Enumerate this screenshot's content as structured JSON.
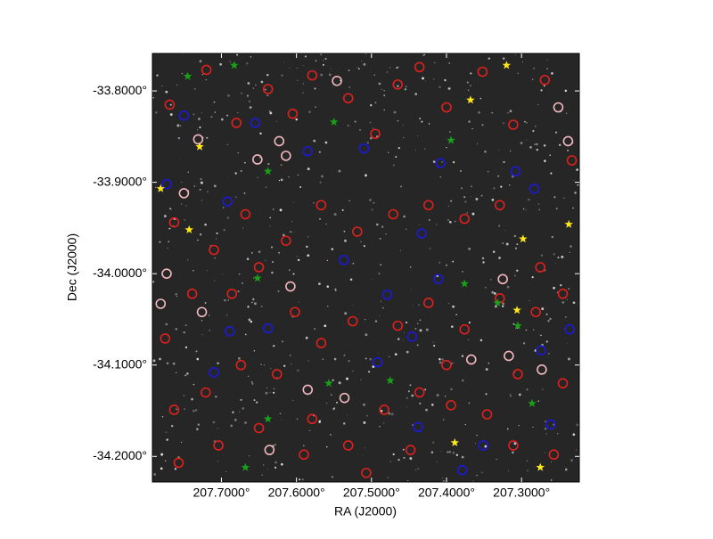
{
  "chart_data": {
    "type": "scatter",
    "xlabel": "RA (J2000)",
    "ylabel": "Dec (J2000)",
    "xlim": [
      207.792,
      207.223
    ],
    "ylim": [
      -34.228,
      -33.759
    ],
    "xticks": [
      {
        "value": 207.7,
        "label": "207.7000°"
      },
      {
        "value": 207.6,
        "label": "207.6000°"
      },
      {
        "value": 207.5,
        "label": "207.5000°"
      },
      {
        "value": 207.4,
        "label": "207.4000°"
      },
      {
        "value": 207.3,
        "label": "207.3000°"
      }
    ],
    "yticks": [
      {
        "value": -33.8,
        "label": "-33.8000°"
      },
      {
        "value": -33.9,
        "label": "-33.9000°"
      },
      {
        "value": -34.0,
        "label": "-34.0000°"
      },
      {
        "value": -34.1,
        "label": "-34.1000°"
      },
      {
        "value": -34.2,
        "label": "-34.2000°"
      }
    ],
    "background": "#262626",
    "series": [
      {
        "color": "#e0201c",
        "marker": "circle",
        "x": [
          207.769,
          207.72,
          207.68,
          207.638,
          207.605,
          207.579,
          207.531,
          207.495,
          207.465,
          207.436,
          207.4,
          207.352,
          207.311,
          207.269,
          207.233,
          207.763,
          207.71,
          207.668,
          207.614,
          207.567,
          207.519,
          207.471,
          207.424,
          207.376,
          207.329,
          207.275,
          207.245,
          207.775,
          207.739,
          207.686,
          207.65,
          207.602,
          207.567,
          207.525,
          207.465,
          207.424,
          207.376,
          207.329,
          207.281,
          207.245,
          207.763,
          207.721,
          207.674,
          207.626,
          207.579,
          207.531,
          207.483,
          207.436,
          207.394,
          207.346,
          207.305,
          207.257,
          207.757,
          207.704,
          207.65,
          207.59,
          207.507,
          207.448,
          207.4,
          207.311
        ],
        "y": [
          -33.815,
          -33.777,
          -33.835,
          -33.798,
          -33.825,
          -33.783,
          -33.808,
          -33.847,
          -33.793,
          -33.774,
          -33.818,
          -33.779,
          -33.837,
          -33.788,
          -33.876,
          -33.944,
          -33.974,
          -33.935,
          -33.964,
          -33.925,
          -33.954,
          -33.935,
          -33.925,
          -33.94,
          -33.925,
          -33.993,
          -34.022,
          -34.071,
          -34.022,
          -34.022,
          -33.993,
          -34.042,
          -34.076,
          -34.052,
          -34.057,
          -34.032,
          -34.061,
          -34.027,
          -34.042,
          -34.12,
          -34.149,
          -34.13,
          -34.1,
          -34.11,
          -34.159,
          -34.188,
          -34.149,
          -34.13,
          -34.144,
          -34.154,
          -34.11,
          -34.198,
          -34.207,
          -34.188,
          -34.169,
          -34.198,
          -34.218,
          -34.193,
          -34.1,
          -34.188
        ]
      },
      {
        "color": "#f4b8c0",
        "marker": "circle",
        "x": [
          207.546,
          207.623,
          207.731,
          207.652,
          207.614,
          207.75,
          207.608,
          207.773,
          207.726,
          207.585,
          207.367,
          207.317,
          207.273,
          207.636,
          207.536,
          207.781,
          207.238,
          207.251,
          207.325
        ],
        "y": [
          -33.789,
          -33.855,
          -33.853,
          -33.875,
          -33.871,
          -33.912,
          -34.014,
          -34.0,
          -34.042,
          -34.127,
          -34.094,
          -34.09,
          -34.105,
          -34.193,
          -34.136,
          -34.033,
          -33.855,
          -33.818,
          -34.006
        ]
      },
      {
        "color": "#1a1ad8",
        "marker": "circle",
        "x": [
          207.773,
          207.75,
          207.655,
          207.585,
          207.692,
          207.51,
          207.408,
          207.308,
          207.283,
          207.689,
          207.433,
          207.537,
          207.411,
          207.479,
          207.446,
          207.492,
          207.438,
          207.351,
          207.379,
          207.274,
          207.236,
          207.261,
          207.638,
          207.71
        ],
        "y": [
          -33.902,
          -33.827,
          -33.835,
          -33.866,
          -33.921,
          -33.863,
          -33.879,
          -33.888,
          -33.907,
          -34.063,
          -33.956,
          -33.985,
          -34.006,
          -34.023,
          -34.069,
          -34.097,
          -34.168,
          -34.188,
          -34.215,
          -34.084,
          -34.061,
          -34.165,
          -34.06,
          -34.108
        ]
      },
      {
        "color": "#18a018",
        "marker": "star",
        "x": [
          207.683,
          207.745,
          207.638,
          207.55,
          207.376,
          207.394,
          207.332,
          207.305,
          207.475,
          207.557,
          207.638,
          207.668,
          207.286,
          207.652
        ],
        "y": [
          -33.772,
          -33.784,
          -33.888,
          -33.834,
          -34.011,
          -33.854,
          -34.032,
          -34.057,
          -34.117,
          -34.12,
          -34.159,
          -34.212,
          -34.142,
          -34.005
        ]
      },
      {
        "color": "#ffe81a",
        "marker": "star",
        "x": [
          207.32,
          207.368,
          207.729,
          207.781,
          207.743,
          207.237,
          207.298,
          207.306,
          207.389,
          207.275
        ],
        "y": [
          -33.772,
          -33.81,
          -33.861,
          -33.907,
          -33.952,
          -33.946,
          -33.962,
          -34.04,
          -34.185,
          -34.212
        ]
      }
    ]
  }
}
